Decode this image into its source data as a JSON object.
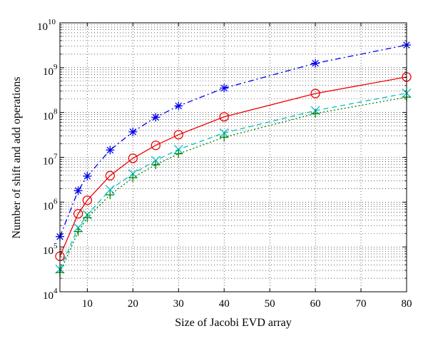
{
  "chart_data": {
    "type": "line",
    "title": "",
    "xlabel": "Size of Jacobi EVD array",
    "ylabel": "Number of shift and add operations",
    "xlim": [
      4,
      80
    ],
    "ylim": [
      10000,
      10000000000
    ],
    "yscale": "log",
    "grid": true,
    "x": [
      4,
      8,
      10,
      15,
      20,
      25,
      30,
      40,
      60,
      80
    ],
    "x_ticks": [
      10,
      20,
      30,
      40,
      50,
      60,
      70,
      80
    ],
    "y_ticks": [
      {
        "value": 10000,
        "base": "10",
        "exp": "4"
      },
      {
        "value": 100000,
        "base": "10",
        "exp": "5"
      },
      {
        "value": 1000000,
        "base": "10",
        "exp": "6"
      },
      {
        "value": 10000000,
        "base": "10",
        "exp": "7"
      },
      {
        "value": 100000000,
        "base": "10",
        "exp": "8"
      },
      {
        "value": 1000000000,
        "base": "10",
        "exp": "9"
      },
      {
        "value": 10000000000,
        "base": "10",
        "exp": "10"
      }
    ],
    "series": [
      {
        "color": "#0000ee",
        "dash": "8,4,2,4",
        "marker": "asterisk",
        "values": [
          170000,
          1800000,
          3800000,
          14500000,
          37000000,
          78000000,
          140000000,
          350000000,
          1250000000,
          3200000000
        ]
      },
      {
        "color": "#ee0000",
        "dash": "",
        "marker": "circle",
        "values": [
          62000,
          550000,
          1100000,
          3900000,
          9500000,
          18500000,
          32000000,
          80000000,
          265000000,
          620000000
        ]
      },
      {
        "color": "#00c0c0",
        "dash": "7,5",
        "marker": "x",
        "values": [
          32000,
          270000,
          520000,
          1900000,
          4300000,
          8500000,
          15000000,
          35000000,
          110000000,
          270000000
        ]
      },
      {
        "color": "#008000",
        "dash": "2,3",
        "marker": "plus",
        "values": [
          27000,
          220000,
          450000,
          1450000,
          3500000,
          6800000,
          12000000,
          28000000,
          95000000,
          220000000
        ]
      }
    ]
  }
}
